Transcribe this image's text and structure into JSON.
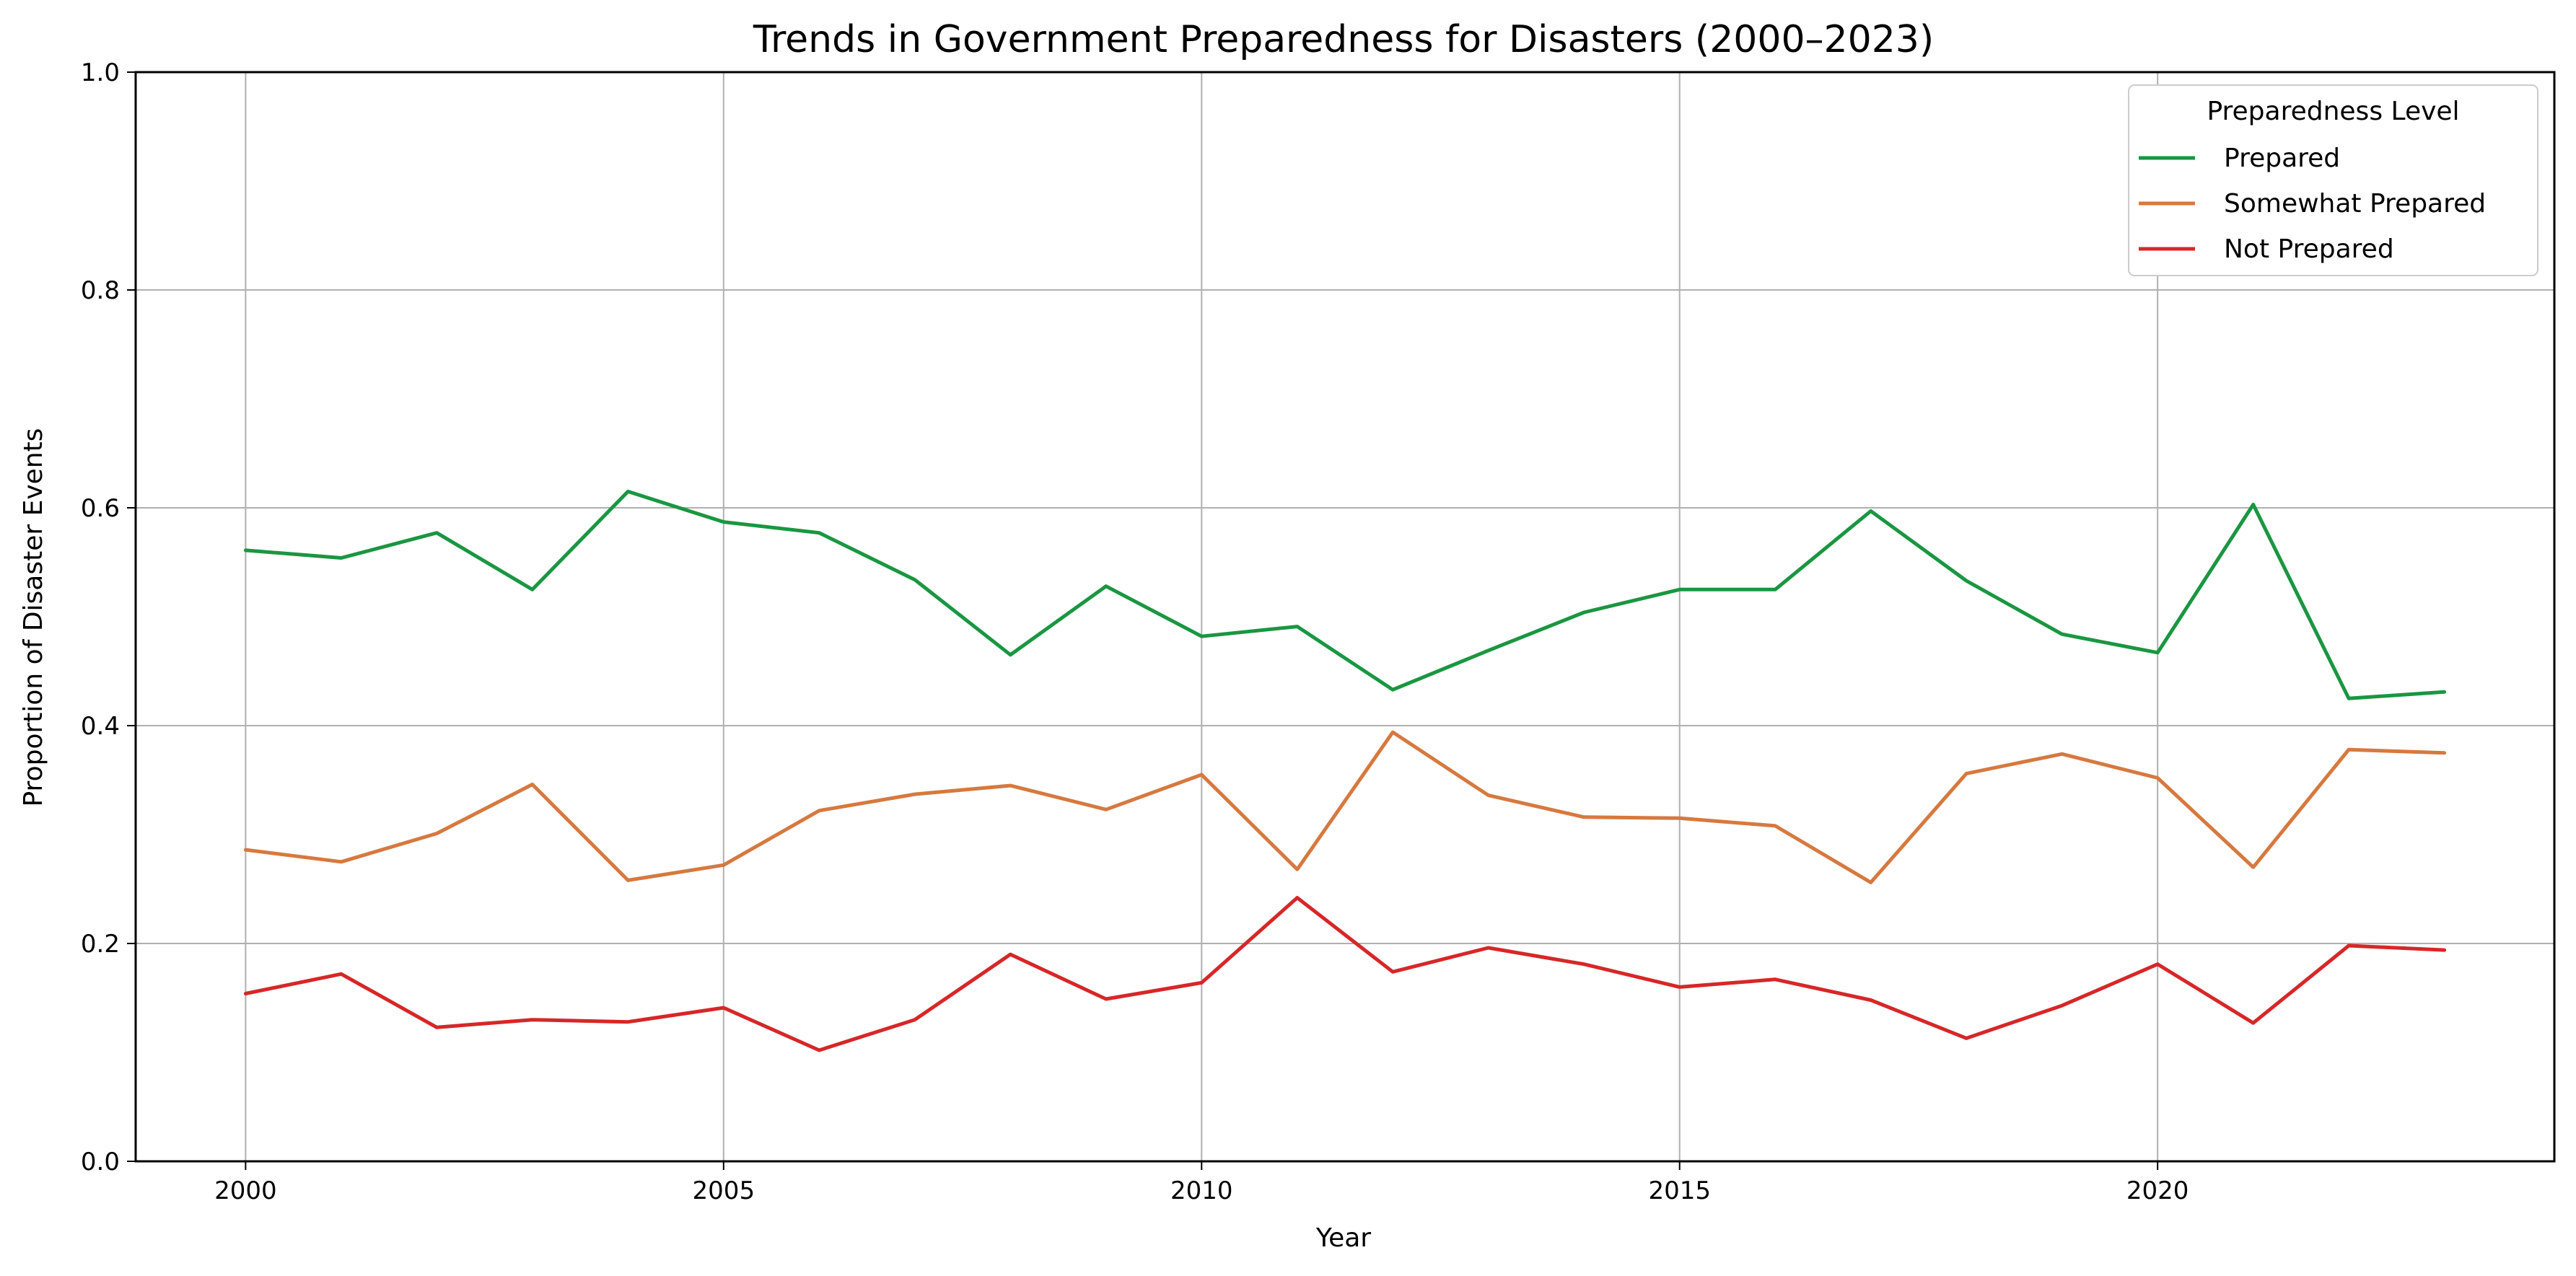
{
  "chart_data": {
    "type": "line",
    "title": "Trends in Government Preparedness for Disasters (2000–2023)",
    "xlabel": "Year",
    "ylabel": "Proportion of Disaster Events",
    "xlim": [
      1998.85,
      2024.15
    ],
    "ylim": [
      0.0,
      1.0
    ],
    "x_ticks": [
      2000,
      2005,
      2010,
      2015,
      2020
    ],
    "y_ticks": [
      0.0,
      0.2,
      0.4,
      0.6,
      0.8,
      1.0
    ],
    "y_tick_labels": [
      "0.0",
      "0.2",
      "0.4",
      "0.6",
      "0.8",
      "1.0"
    ],
    "grid": true,
    "legend": {
      "title": "Preparedness Level",
      "position": "upper-right"
    },
    "x": [
      2000,
      2001,
      2002,
      2003,
      2004,
      2005,
      2006,
      2007,
      2008,
      2009,
      2010,
      2011,
      2012,
      2013,
      2014,
      2015,
      2016,
      2017,
      2018,
      2019,
      2020,
      2021,
      2022,
      2023
    ],
    "series": [
      {
        "name": "Prepared",
        "color": "#1a9641",
        "values": [
          0.561,
          0.554,
          0.577,
          0.525,
          0.615,
          0.587,
          0.577,
          0.534,
          0.465,
          0.528,
          0.482,
          0.491,
          0.433,
          0.469,
          0.504,
          0.525,
          0.525,
          0.597,
          0.533,
          0.484,
          0.467,
          0.603,
          0.425,
          0.431
        ]
      },
      {
        "name": "Somewhat Prepared",
        "color": "#d6793f",
        "values": [
          0.286,
          0.275,
          0.301,
          0.346,
          0.258,
          0.272,
          0.322,
          0.337,
          0.345,
          0.323,
          0.355,
          0.268,
          0.394,
          0.336,
          0.316,
          0.315,
          0.308,
          0.256,
          0.356,
          0.374,
          0.352,
          0.27,
          0.378,
          0.375
        ]
      },
      {
        "name": "Not Prepared",
        "color": "#d62728",
        "values": [
          0.154,
          0.172,
          0.123,
          0.13,
          0.128,
          0.141,
          0.102,
          0.13,
          0.19,
          0.149,
          0.164,
          0.242,
          0.174,
          0.196,
          0.181,
          0.16,
          0.167,
          0.148,
          0.113,
          0.143,
          0.181,
          0.127,
          0.198,
          0.194
        ]
      }
    ]
  }
}
